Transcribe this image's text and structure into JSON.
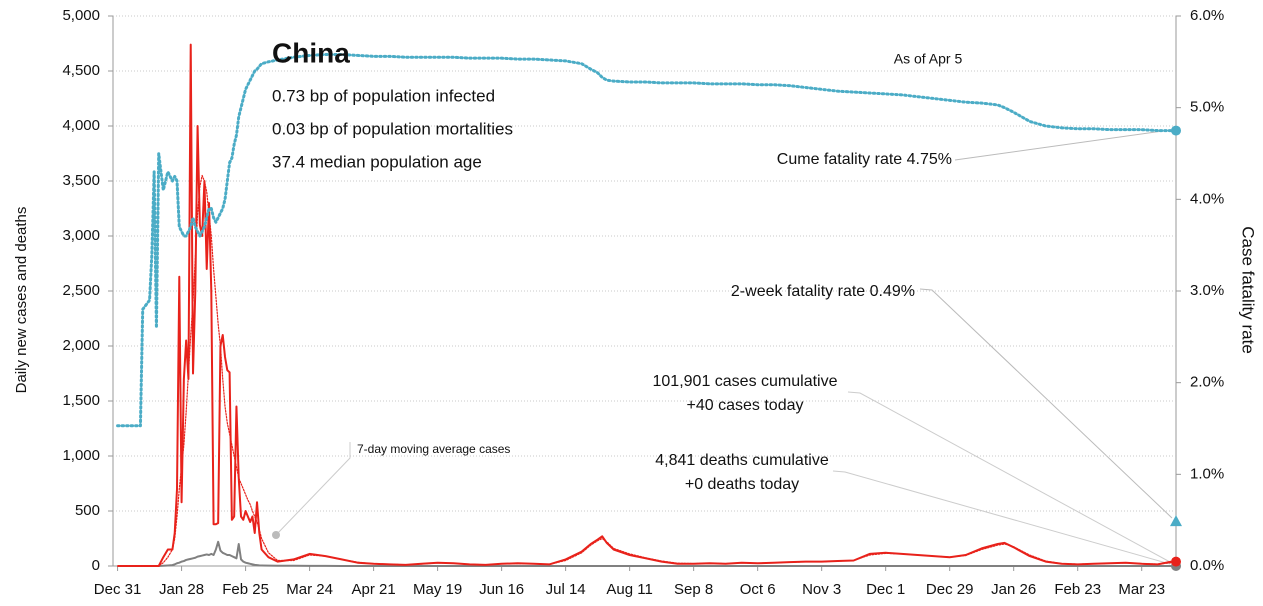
{
  "chart_data": {
    "type": "line",
    "y_label": "Daily new cases and deaths",
    "y2_label": "Case fatality rate",
    "y2_color": "#4bacc6",
    "grid": true,
    "xlim": [
      -2,
      463
    ],
    "xticks": [
      {
        "value": 0,
        "label": "Dec 31"
      },
      {
        "value": 28,
        "label": "Jan 28"
      },
      {
        "value": 56,
        "label": "Feb 25"
      },
      {
        "value": 84,
        "label": "Mar 24"
      },
      {
        "value": 112,
        "label": "Apr 21"
      },
      {
        "value": 140,
        "label": "May 19"
      },
      {
        "value": 168,
        "label": "Jun 16"
      },
      {
        "value": 196,
        "label": "Jul 14"
      },
      {
        "value": 224,
        "label": "Aug 11"
      },
      {
        "value": 252,
        "label": "Sep 8"
      },
      {
        "value": 280,
        "label": "Oct 6"
      },
      {
        "value": 308,
        "label": "Nov 3"
      },
      {
        "value": 336,
        "label": "Dec 1"
      },
      {
        "value": 364,
        "label": "Dec 29"
      },
      {
        "value": 392,
        "label": "Jan 26"
      },
      {
        "value": 420,
        "label": "Feb 23"
      },
      {
        "value": 448,
        "label": "Mar 23"
      }
    ],
    "ylim": [
      0,
      5000
    ],
    "yticks": [
      0,
      500,
      {
        "value": 1000,
        "label": "1,000"
      },
      {
        "value": 1500,
        "label": "1,500"
      },
      {
        "value": 2000,
        "label": "2,000"
      },
      {
        "value": 2500,
        "label": "2,500"
      },
      {
        "value": 3000,
        "label": "3,000"
      },
      {
        "value": 3500,
        "label": "3,500"
      },
      {
        "value": 4000,
        "label": "4,000"
      },
      {
        "value": 4500,
        "label": "4,500"
      },
      {
        "value": 5000,
        "label": "5,000"
      }
    ],
    "y2lim": [
      0,
      6
    ],
    "y2ticks": [
      {
        "value": 0,
        "label": "0.0%"
      },
      {
        "value": 1,
        "label": "1.0%"
      },
      {
        "value": 2,
        "label": "2.0%"
      },
      {
        "value": 3,
        "label": "3.0%"
      },
      {
        "value": 4,
        "label": "4.0%"
      },
      {
        "value": 5,
        "label": "5.0%"
      },
      {
        "value": 6,
        "label": "6.0%"
      }
    ],
    "x": [
      0,
      5,
      10,
      11,
      14,
      15,
      16,
      17,
      18,
      20,
      22,
      24,
      25,
      26,
      27,
      28,
      29,
      30,
      31,
      32,
      33,
      34,
      35,
      36,
      37,
      38,
      39,
      40,
      41,
      42,
      43,
      44,
      45,
      46,
      47,
      48,
      49,
      50,
      51,
      52,
      53,
      54,
      55,
      56,
      57,
      58,
      59,
      60,
      61,
      62,
      63,
      66,
      70,
      77,
      84,
      91,
      98,
      105,
      112,
      119,
      126,
      133,
      140,
      147,
      154,
      161,
      168,
      175,
      182,
      189,
      196,
      203,
      207,
      210,
      212,
      214,
      217,
      224,
      231,
      238,
      245,
      252,
      259,
      266,
      273,
      280,
      287,
      294,
      301,
      308,
      315,
      322,
      329,
      336,
      343,
      350,
      357,
      364,
      371,
      378,
      385,
      388,
      392,
      399,
      406,
      413,
      420,
      427,
      434,
      441,
      448,
      455,
      461
    ],
    "series": [
      {
        "name": "Deaths",
        "color": "#808080",
        "style": "solid",
        "values": [
          0,
          0,
          0,
          0,
          0,
          0,
          0,
          0,
          0,
          2,
          5,
          8,
          15,
          25,
          30,
          40,
          45,
          55,
          60,
          65,
          70,
          75,
          85,
          90,
          95,
          100,
          105,
          100,
          110,
          100,
          150,
          220,
          140,
          120,
          110,
          100,
          100,
          90,
          80,
          70,
          200,
          60,
          40,
          30,
          25,
          20,
          15,
          10,
          8,
          6,
          5,
          3,
          2,
          2,
          1,
          1,
          0,
          0,
          0,
          0,
          0,
          0,
          0,
          0,
          0,
          0,
          0,
          0,
          0,
          0,
          0,
          0,
          0,
          0,
          0,
          0,
          0,
          0,
          0,
          0,
          0,
          0,
          0,
          0,
          0,
          0,
          0,
          0,
          0,
          0,
          0,
          0,
          0,
          0,
          0,
          0,
          0,
          0,
          0,
          0,
          0,
          0,
          0,
          0,
          0,
          0,
          0,
          0,
          0,
          0,
          0,
          0,
          0
        ]
      },
      {
        "name": "Cases",
        "color": "#e8221b",
        "style": "solid",
        "values": [
          0,
          0,
          0,
          0,
          0,
          0,
          0,
          0,
          0,
          80,
          150,
          150,
          300,
          700,
          2630,
          580,
          1700,
          2050,
          1700,
          4740,
          1750,
          2500,
          4000,
          3100,
          3000,
          3500,
          2700,
          3300,
          2500,
          380,
          380,
          390,
          2000,
          2100,
          1900,
          1780,
          1760,
          420,
          450,
          1450,
          800,
          450,
          420,
          500,
          450,
          400,
          450,
          300,
          580,
          300,
          150,
          80,
          40,
          60,
          110,
          90,
          60,
          30,
          20,
          15,
          10,
          20,
          30,
          25,
          15,
          10,
          20,
          25,
          20,
          15,
          60,
          130,
          200,
          240,
          270,
          210,
          150,
          100,
          70,
          40,
          20,
          20,
          25,
          20,
          30,
          25,
          30,
          35,
          40,
          40,
          45,
          50,
          110,
          120,
          110,
          100,
          90,
          80,
          100,
          160,
          200,
          210,
          170,
          90,
          40,
          20,
          15,
          20,
          25,
          30,
          20,
          15,
          40
        ]
      },
      {
        "name": "7-day moving average cases",
        "color": "#e8221b",
        "style": "dotted",
        "values": [
          0,
          0,
          0,
          0,
          0,
          0,
          0,
          0,
          0,
          30,
          80,
          150,
          250,
          450,
          700,
          900,
          1100,
          1400,
          1750,
          2100,
          2400,
          2800,
          3200,
          3450,
          3550,
          3500,
          3400,
          3200,
          3000,
          2700,
          2450,
          2200,
          2000,
          1700,
          1450,
          1300,
          1200,
          1100,
          1000,
          900,
          800,
          750,
          700,
          650,
          600,
          560,
          500,
          450,
          400,
          330,
          250,
          120,
          50,
          50,
          100,
          90,
          60,
          35,
          20,
          15,
          12,
          18,
          28,
          25,
          15,
          12,
          20,
          22,
          20,
          16,
          50,
          120,
          190,
          230,
          250,
          220,
          160,
          110,
          75,
          45,
          25,
          22,
          24,
          22,
          28,
          26,
          30,
          34,
          38,
          40,
          44,
          50,
          100,
          115,
          110,
          100,
          90,
          82,
          95,
          150,
          190,
          200,
          175,
          100,
          45,
          22,
          17,
          20,
          24,
          28,
          22,
          17,
          30
        ]
      },
      {
        "name": "Case fatality rate",
        "color": "#4bacc6",
        "style": "dotted",
        "axis": "y2",
        "values": [
          1.53,
          1.53,
          1.53,
          2.8,
          2.9,
          3.4,
          4.3,
          2.6,
          4.5,
          4.1,
          4.3,
          4.2,
          4.25,
          4.2,
          3.7,
          3.65,
          3.6,
          3.6,
          3.65,
          3.7,
          3.8,
          3.7,
          3.65,
          3.6,
          3.65,
          3.7,
          3.8,
          3.9,
          3.9,
          3.8,
          3.75,
          3.8,
          3.85,
          3.9,
          4.0,
          4.2,
          4.4,
          4.45,
          4.6,
          4.7,
          4.9,
          5.0,
          5.1,
          5.2,
          5.25,
          5.3,
          5.35,
          5.4,
          5.42,
          5.45,
          5.48,
          5.5,
          5.52,
          5.55,
          5.57,
          5.58,
          5.58,
          5.57,
          5.56,
          5.56,
          5.55,
          5.55,
          5.55,
          5.55,
          5.54,
          5.54,
          5.54,
          5.53,
          5.53,
          5.52,
          5.51,
          5.48,
          5.42,
          5.38,
          5.33,
          5.3,
          5.29,
          5.28,
          5.28,
          5.27,
          5.27,
          5.27,
          5.26,
          5.26,
          5.26,
          5.25,
          5.25,
          5.24,
          5.22,
          5.2,
          5.18,
          5.17,
          5.16,
          5.15,
          5.14,
          5.12,
          5.1,
          5.08,
          5.06,
          5.05,
          5.03,
          5.0,
          4.95,
          4.85,
          4.8,
          4.78,
          4.77,
          4.77,
          4.76,
          4.76,
          4.76,
          4.75,
          4.75
        ]
      }
    ],
    "two_week_fatality_rate": 0.49,
    "annotations": [
      "China",
      "0.73 bp of population infected",
      "0.03 bp of population mortalities",
      "37.4 median population age",
      "As of Apr 5",
      "Cume fatality rate 4.75%",
      "2-week fatality rate 0.49%",
      "101,901 cases cumulative",
      "+40 cases today",
      "4,841 deaths cumulative",
      "+0 deaths today",
      "7-day moving average cases"
    ]
  }
}
